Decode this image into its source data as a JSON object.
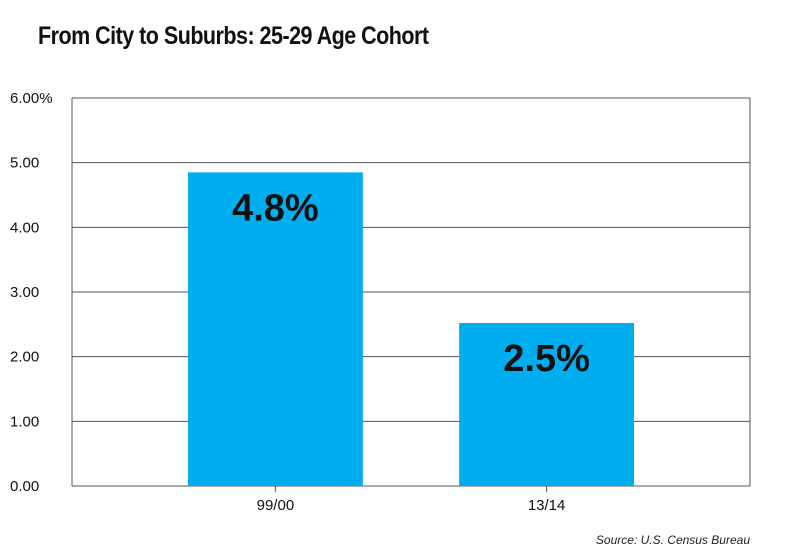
{
  "chart_data": {
    "type": "bar",
    "title": "From City to Suburbs: 25-29 Age Cohort",
    "xlabel": "",
    "ylabel": "",
    "categories": [
      "99/00",
      "13/14"
    ],
    "values": [
      4.85,
      2.52
    ],
    "data_labels": [
      "4.8%",
      "2.5%"
    ],
    "ylim": [
      0,
      6
    ],
    "y_ticks": [
      0,
      1,
      2,
      3,
      4,
      5,
      6
    ],
    "y_tick_labels": [
      "0.00",
      "1.00",
      "2.00",
      "3.00",
      "4.00",
      "5.00",
      "6.00%"
    ],
    "grid": true,
    "legend": "none",
    "bar_color": "#00aeef",
    "source": "Source: U.S. Census Bureau"
  }
}
